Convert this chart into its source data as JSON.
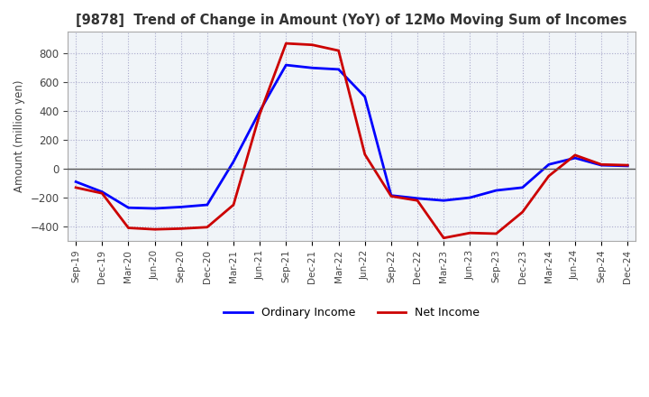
{
  "title": "[9878]  Trend of Change in Amount (YoY) of 12Mo Moving Sum of Incomes",
  "ylabel": "Amount (million yen)",
  "ylim": [
    -500,
    950
  ],
  "yticks": [
    -400,
    -200,
    0,
    200,
    400,
    600,
    800
  ],
  "x_labels": [
    "Sep-19",
    "Dec-19",
    "Mar-20",
    "Jun-20",
    "Sep-20",
    "Dec-20",
    "Mar-21",
    "Jun-21",
    "Sep-21",
    "Dec-21",
    "Mar-22",
    "Jun-22",
    "Sep-22",
    "Dec-22",
    "Mar-23",
    "Jun-23",
    "Sep-23",
    "Dec-23",
    "Mar-24",
    "Jun-24",
    "Sep-24",
    "Dec-24"
  ],
  "ordinary_income": [
    -90,
    -160,
    -270,
    -275,
    -265,
    -250,
    50,
    400,
    720,
    700,
    690,
    500,
    -185,
    -205,
    -220,
    -200,
    -150,
    -130,
    30,
    75,
    25,
    20
  ],
  "net_income": [
    -130,
    -170,
    -410,
    -420,
    -415,
    -405,
    -250,
    380,
    870,
    860,
    820,
    100,
    -190,
    -220,
    -480,
    -445,
    -450,
    -300,
    -50,
    95,
    30,
    25
  ],
  "ordinary_color": "#0000ff",
  "net_color": "#cc0000",
  "legend_labels": [
    "Ordinary Income",
    "Net Income"
  ],
  "background_color": "#ffffff",
  "plot_bg_color": "#f0f4f8",
  "grid_color": "#aaaacc",
  "title_color": "#333333"
}
